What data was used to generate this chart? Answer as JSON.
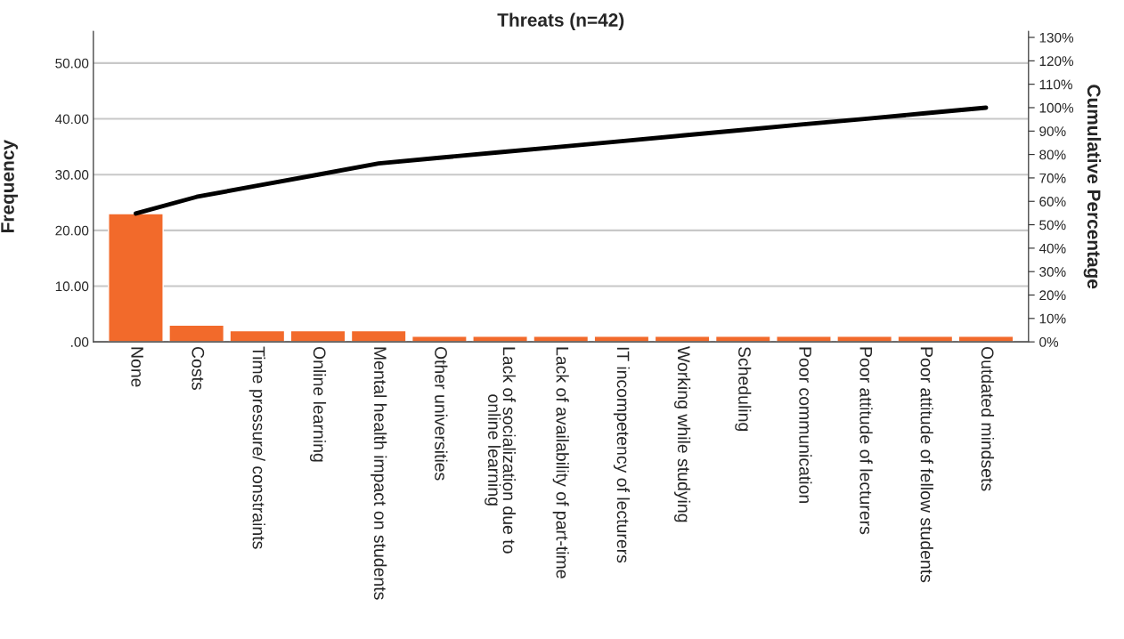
{
  "chart_data": {
    "type": "bar",
    "title": "Threats (n=42)",
    "ylabel": "Frequency",
    "y2label": "Cumulative Percentage",
    "categories": [
      "None",
      "Costs",
      "Time pressure/ constraints",
      "Online learning",
      "Mental health impact on students",
      "Other universities",
      "Lack of socialization due to\nonline learning",
      "Lack of availability of part-time",
      "IT incompetency of lecturers",
      "Working while studying",
      "Scheduling",
      "Poor communication",
      "Poor attitude of lecturers",
      "Poor attitude of fellow students",
      "Outdated mindsets"
    ],
    "series": [
      {
        "color": "#f26a2b",
        "values": [
          23,
          3,
          2,
          2,
          2,
          1,
          1,
          1,
          1,
          1,
          1,
          1,
          1,
          1,
          1
        ]
      },
      {
        "type": "line",
        "axis": "y2",
        "color": "#000000",
        "values": [
          54.8,
          61.9,
          66.7,
          71.4,
          76.2,
          78.6,
          81.0,
          83.3,
          85.7,
          88.1,
          90.5,
          92.9,
          95.2,
          97.6,
          100.0
        ]
      }
    ],
    "ylim": [
      0,
      55.7
    ],
    "yticks": [
      {
        "value": 0,
        "label": ".00"
      },
      {
        "value": 10,
        "label": "10.00"
      },
      {
        "value": 20,
        "label": "20.00"
      },
      {
        "value": 30,
        "label": "30.00"
      },
      {
        "value": 40,
        "label": "40.00"
      },
      {
        "value": 50,
        "label": "50.00"
      }
    ],
    "y2lim": [
      0,
      132.6
    ],
    "y2ticks": [
      {
        "value": 0,
        "label": "0%"
      },
      {
        "value": 10,
        "label": "10%"
      },
      {
        "value": 20,
        "label": "20%"
      },
      {
        "value": 30,
        "label": "30%"
      },
      {
        "value": 40,
        "label": "40%"
      },
      {
        "value": 50,
        "label": "50%"
      },
      {
        "value": 60,
        "label": "60%"
      },
      {
        "value": 70,
        "label": "70%"
      },
      {
        "value": 80,
        "label": "80%"
      },
      {
        "value": 90,
        "label": "90%"
      },
      {
        "value": 100,
        "label": "100%"
      },
      {
        "value": 110,
        "label": "110%"
      },
      {
        "value": 120,
        "label": "120%"
      },
      {
        "value": 130,
        "label": "130%"
      }
    ],
    "grid": "y",
    "legend": false,
    "marker": "none",
    "line_style": "solid"
  }
}
